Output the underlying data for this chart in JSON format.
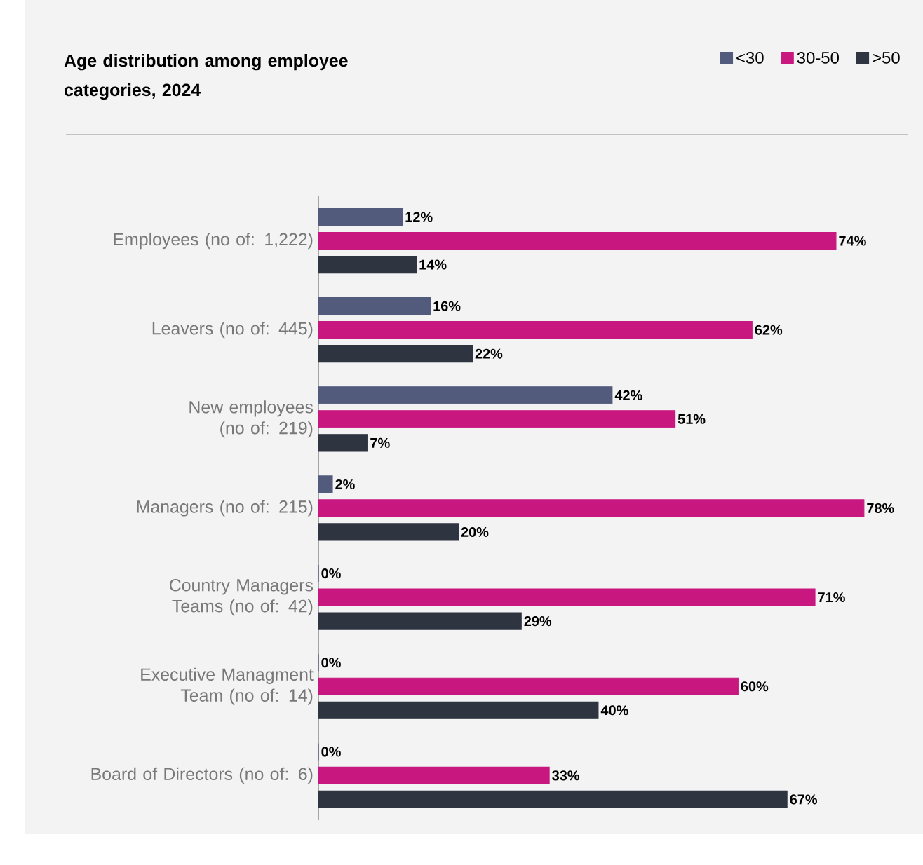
{
  "chart_data": {
    "type": "bar",
    "orientation": "horizontal",
    "title": "Age distribution among employee categories, 2024",
    "categories": [
      "Employees (no of: 1,222)",
      "Leavers (no of: 445)",
      "New employees (no of: 219)",
      "Managers (no of: 215)",
      "Country Managers Teams (no of: 42)",
      "Executive Managment Team (no of: 14)",
      "Board of Directors (no of: 6)"
    ],
    "series": [
      {
        "name": "<30",
        "color": "#525b7c",
        "values": [
          12,
          16,
          42,
          2,
          0,
          0,
          0
        ],
        "value_labels": [
          "12%",
          "16%",
          "42%",
          "2%",
          "0%",
          "0%",
          "0%"
        ]
      },
      {
        "name": "30-50",
        "color": "#c8177f",
        "values": [
          74,
          62,
          51,
          78,
          71,
          60,
          33
        ],
        "value_labels": [
          "74%",
          "62%",
          "51%",
          "78%",
          "71%",
          "60%",
          "33%"
        ]
      },
      {
        "name": ">50",
        "color": "#2e3541",
        "values": [
          14,
          22,
          7,
          20,
          29,
          40,
          67
        ],
        "value_labels": [
          "14%",
          "22%",
          "7%",
          "20%",
          "29%",
          "40%",
          "67%"
        ]
      }
    ],
    "legend": "top right"
  }
}
